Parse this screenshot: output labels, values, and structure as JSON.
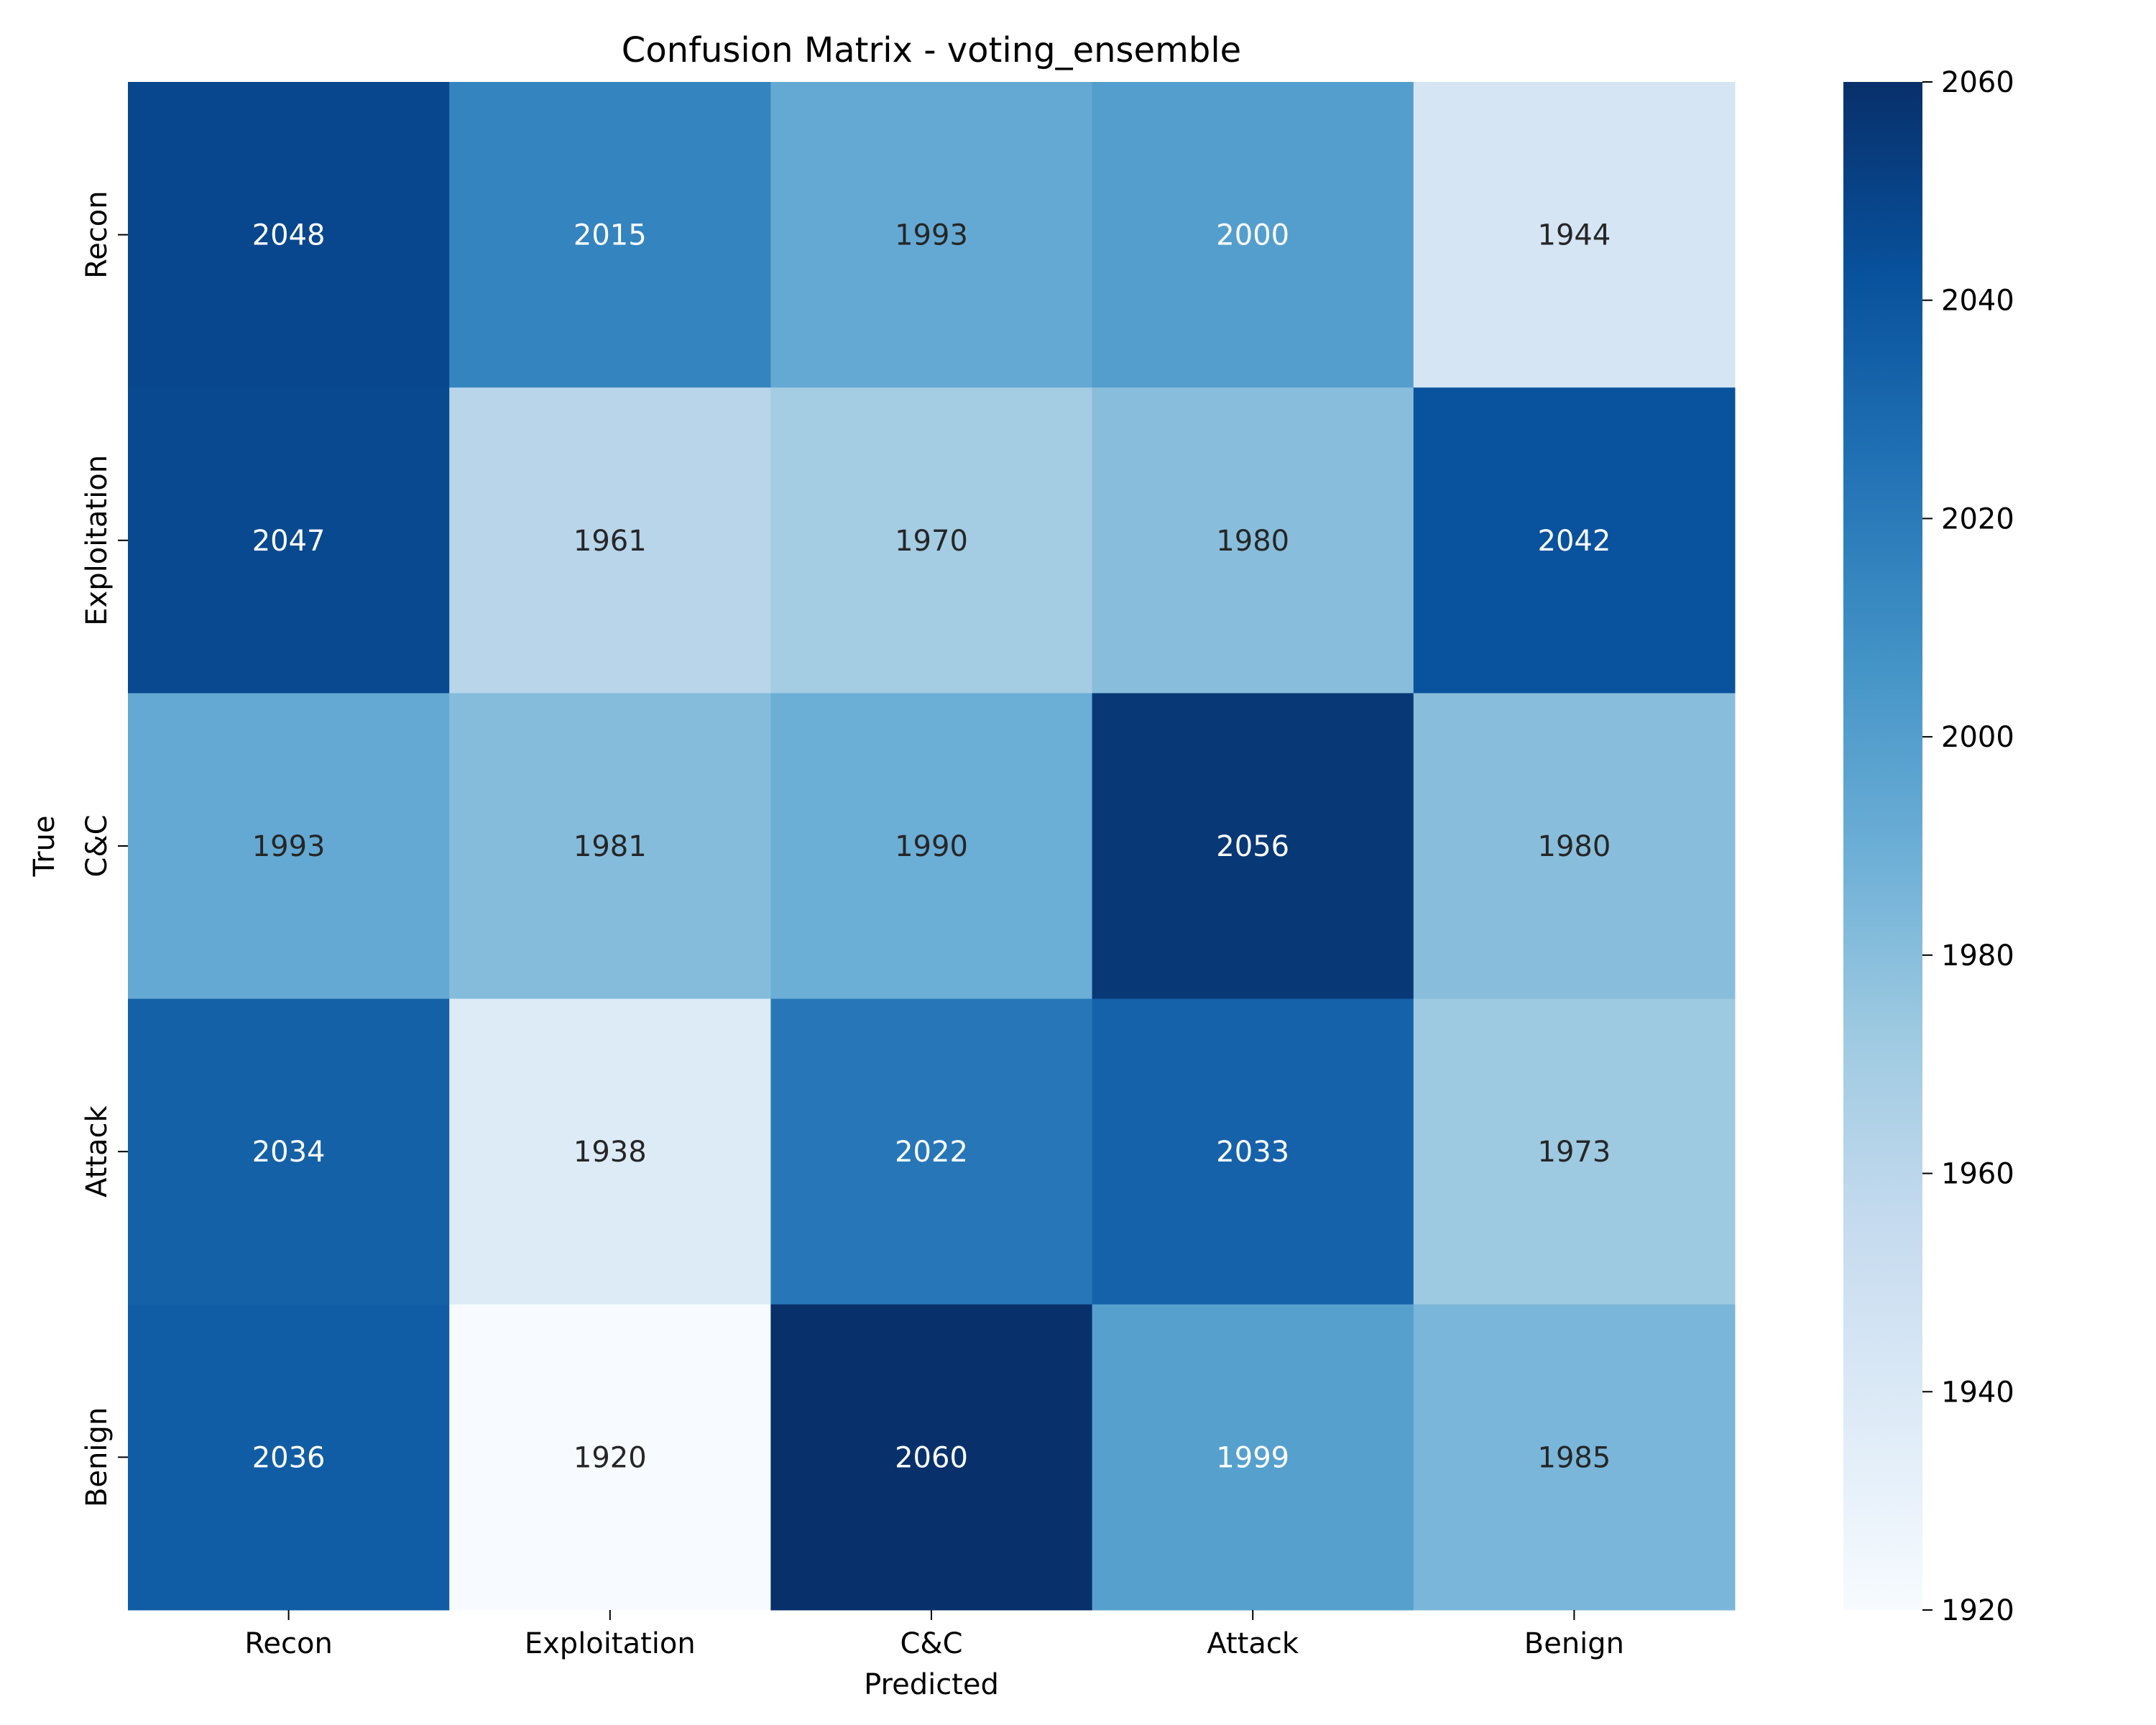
{
  "chart_data": {
    "type": "heatmap",
    "title": "Confusion Matrix - voting_ensemble",
    "xlabel": "Predicted",
    "ylabel": "True",
    "x_categories": [
      "Recon",
      "Exploitation",
      "C&C",
      "Attack",
      "Benign"
    ],
    "y_categories": [
      "Recon",
      "Exploitation",
      "C&C",
      "Attack",
      "Benign"
    ],
    "values": [
      [
        2048,
        2015,
        1993,
        2000,
        1944
      ],
      [
        2047,
        1961,
        1970,
        1980,
        2042
      ],
      [
        1993,
        1981,
        1990,
        2056,
        1980
      ],
      [
        2034,
        1938,
        2022,
        2033,
        1973
      ],
      [
        2036,
        1920,
        2060,
        1999,
        1985
      ]
    ],
    "colormap": "Blues",
    "colorbar": {
      "range": [
        1920,
        2060
      ],
      "ticks": [
        "1920",
        "1940",
        "1960",
        "1980",
        "2000",
        "2020",
        "2040",
        "2060"
      ]
    },
    "grid": false
  }
}
